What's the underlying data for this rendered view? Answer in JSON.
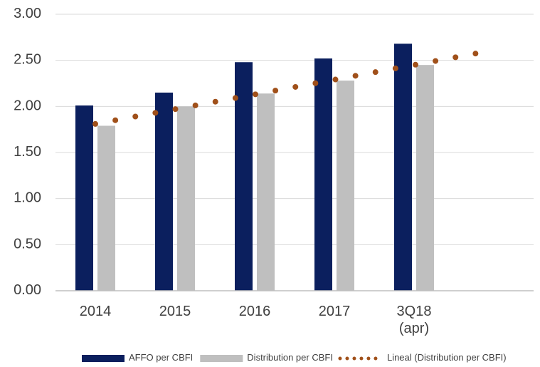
{
  "chart_data": {
    "type": "bar",
    "categories": [
      "2014",
      "2015",
      "2016",
      "2017",
      "3Q18\n(apr)",
      null
    ],
    "series": [
      {
        "name": "AFFO per CBFI",
        "color": "#0b1f5e",
        "values": [
          2.01,
          2.15,
          2.48,
          2.52,
          2.68,
          null
        ]
      },
      {
        "name": "Distribution per CBFI",
        "color": "#bfbfbf",
        "values": [
          1.79,
          2.0,
          2.14,
          2.28,
          2.45,
          null
        ]
      },
      {
        "name": "Lineal (Distribution per CBFI)",
        "color": "#a0501a",
        "style": "dotted",
        "values": [
          1.81,
          1.97,
          2.13,
          2.29,
          2.45,
          2.61
        ]
      }
    ],
    "ylim": [
      0,
      3
    ],
    "yticks": [
      {
        "value": 0,
        "label": "0.00"
      },
      {
        "value": 0.5,
        "label": "0.50"
      },
      {
        "value": 1,
        "label": "1.00"
      },
      {
        "value": 1.5,
        "label": "1.50"
      },
      {
        "value": 2,
        "label": "2.00"
      },
      {
        "value": 2.5,
        "label": "2.50"
      },
      {
        "value": 3,
        "label": "3.00"
      }
    ],
    "grid": true,
    "legend": "bottom"
  }
}
